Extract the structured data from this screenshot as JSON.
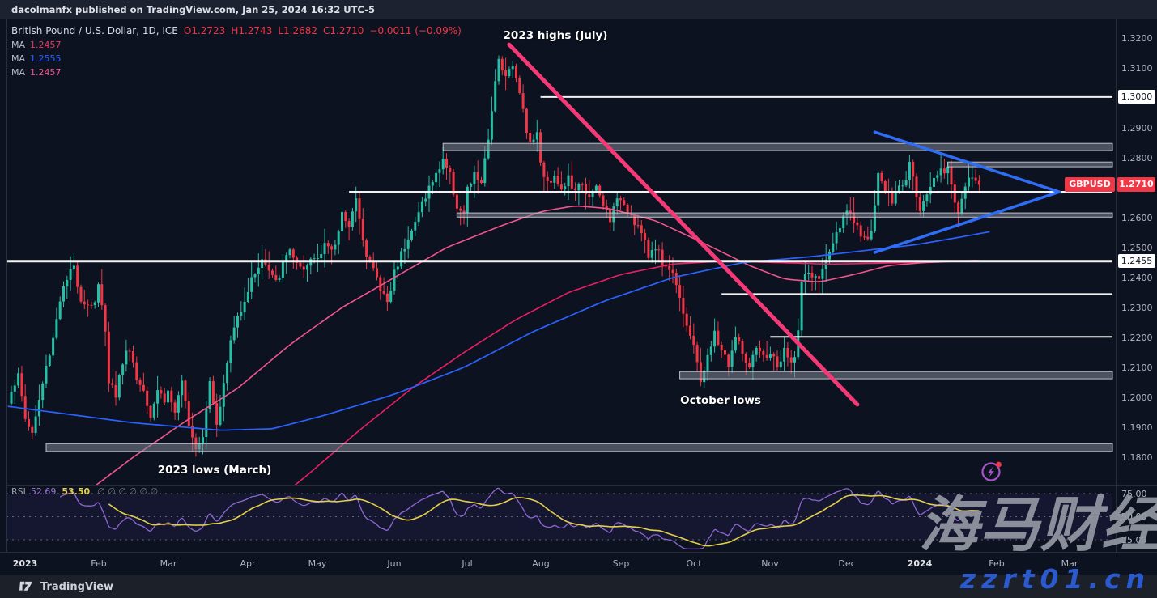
{
  "topbar": {
    "text": "dacolmanfx published on TradingView.com, Jan 25, 2024 16:32 UTC-5"
  },
  "legend": {
    "symbol": "British Pound / U.S. Dollar, 1D, ICE",
    "ohlc": {
      "open": "O1.2723",
      "high": "H1.2743",
      "low": "L1.2682",
      "close": "C1.2710",
      "change": "−0.0011 (−0.09%)"
    },
    "ma_rows": [
      {
        "label": "MA",
        "value": "1.2457",
        "color": "#e93a5f"
      },
      {
        "label": "MA",
        "value": "1.2555",
        "color": "#2962ff"
      },
      {
        "label": "MA",
        "value": "1.2457",
        "color": "#f0558c"
      }
    ]
  },
  "annotations": [
    {
      "text": "2023 highs (July)"
    },
    {
      "text": "October lows"
    },
    {
      "text": "2023 lows (March)"
    }
  ],
  "price_axis": {
    "ticks": [
      {
        "label": "1.3200",
        "price": 1.32
      },
      {
        "label": "1.3100",
        "price": 1.31
      },
      {
        "label": "1.2900",
        "price": 1.29
      },
      {
        "label": "1.2800",
        "price": 1.28
      },
      {
        "label": "1.2600",
        "price": 1.26
      },
      {
        "label": "1.2500",
        "price": 1.25
      },
      {
        "label": "1.2400",
        "price": 1.24
      },
      {
        "label": "1.2300",
        "price": 1.23
      },
      {
        "label": "1.2200",
        "price": 1.22
      },
      {
        "label": "1.2100",
        "price": 1.21
      },
      {
        "label": "1.2000",
        "price": 1.2
      },
      {
        "label": "1.1900",
        "price": 1.19
      },
      {
        "label": "1.1800",
        "price": 1.18
      }
    ],
    "boxed_labels": [
      {
        "label": "1.3000",
        "price": 1.3003
      },
      {
        "label": "1.2455",
        "price": 1.2455
      }
    ],
    "symbol_tag": {
      "symbol": "GBPUSD",
      "price_label": "1.2710",
      "price": 1.271,
      "color": "#f23645"
    }
  },
  "time_axis": [
    {
      "label": "2023",
      "day": 4,
      "year": true
    },
    {
      "label": "Feb",
      "day": 25
    },
    {
      "label": "Mar",
      "day": 45
    },
    {
      "label": "Apr",
      "day": 68
    },
    {
      "label": "May",
      "day": 88
    },
    {
      "label": "Jun",
      "day": 110
    },
    {
      "label": "Jul",
      "day": 131
    },
    {
      "label": "Aug",
      "day": 152
    },
    {
      "label": "Sep",
      "day": 175
    },
    {
      "label": "Oct",
      "day": 196
    },
    {
      "label": "Nov",
      "day": 218
    },
    {
      "label": "Dec",
      "day": 240
    },
    {
      "label": "2024",
      "day": 261,
      "year": true
    },
    {
      "label": "Feb",
      "day": 283
    },
    {
      "label": "Mar",
      "day": 304
    }
  ],
  "rsi_pane": {
    "label": "RSI",
    "value": "52.69",
    "ma_value": "53.50",
    "empty_markers": [
      "∅",
      "∅",
      "∅",
      "∅",
      "∅",
      "∅"
    ],
    "scale": [
      {
        "label": "75.00",
        "value": 75
      },
      {
        "label": "50.00",
        "value": 50
      },
      {
        "label": "25.00",
        "value": 25
      }
    ]
  },
  "footer": {
    "brand": "TradingView"
  },
  "watermark": {
    "cn": "海马财经",
    "url": "zzrt01.cn"
  },
  "chart_data": {
    "type": "candlestick",
    "symbol": "GBPUSD",
    "description": "British Pound / U.S. Dollar",
    "timeframe": "1D",
    "exchange": "ICE",
    "current_bar": {
      "open": 1.2723,
      "high": 1.2743,
      "low": 1.2682,
      "close": 1.271,
      "change": -0.0011,
      "change_pct": -0.09
    },
    "moving_averages": [
      {
        "value": 1.2457,
        "color": "#e93a5f"
      },
      {
        "value": 1.2555,
        "color": "#2962ff"
      },
      {
        "value": 1.2457,
        "color": "#f0558c"
      }
    ],
    "y_axis": {
      "min": 1.1745,
      "max": 1.3235,
      "tick_step": 0.01
    },
    "num_days": 279,
    "up_color": "#26bfa6",
    "down_color": "#f23645",
    "close_anchors": [
      [
        0,
        1.203
      ],
      [
        2,
        1.207
      ],
      [
        4,
        1.193
      ],
      [
        6,
        1.188
      ],
      [
        8,
        1.199
      ],
      [
        10,
        1.21
      ],
      [
        12,
        1.22
      ],
      [
        14,
        1.233
      ],
      [
        16,
        1.239
      ],
      [
        18,
        1.2435
      ],
      [
        20,
        1.233
      ],
      [
        22,
        1.231
      ],
      [
        24,
        1.232
      ],
      [
        25,
        1.237
      ],
      [
        26,
        1.23
      ],
      [
        27,
        1.223
      ],
      [
        28,
        1.206
      ],
      [
        30,
        1.201
      ],
      [
        32,
        1.212
      ],
      [
        34,
        1.217
      ],
      [
        36,
        1.206
      ],
      [
        38,
        1.203
      ],
      [
        40,
        1.1945
      ],
      [
        42,
        1.203
      ],
      [
        44,
        1.199
      ],
      [
        45,
        1.202
      ],
      [
        47,
        1.195
      ],
      [
        49,
        1.204
      ],
      [
        51,
        1.192
      ],
      [
        53,
        1.1835
      ],
      [
        55,
        1.188
      ],
      [
        57,
        1.206
      ],
      [
        59,
        1.192
      ],
      [
        61,
        1.204
      ],
      [
        63,
        1.219
      ],
      [
        65,
        1.227
      ],
      [
        67,
        1.233
      ],
      [
        70,
        1.242
      ],
      [
        72,
        1.246
      ],
      [
        74,
        1.242
      ],
      [
        76,
        1.238
      ],
      [
        78,
        1.244
      ],
      [
        80,
        1.25
      ],
      [
        82,
        1.244
      ],
      [
        84,
        1.241
      ],
      [
        86,
        1.246
      ],
      [
        88,
        1.247
      ],
      [
        90,
        1.252
      ],
      [
        92,
        1.248
      ],
      [
        94,
        1.255
      ],
      [
        95,
        1.263
      ],
      [
        97,
        1.257
      ],
      [
        99,
        1.265
      ],
      [
        100,
        1.261
      ],
      [
        102,
        1.247
      ],
      [
        104,
        1.243
      ],
      [
        106,
        1.236
      ],
      [
        108,
        1.232
      ],
      [
        109,
        1.236
      ],
      [
        110,
        1.242
      ],
      [
        112,
        1.248
      ],
      [
        114,
        1.254
      ],
      [
        116,
        1.258
      ],
      [
        118,
        1.265
      ],
      [
        120,
        1.27
      ],
      [
        122,
        1.274
      ],
      [
        124,
        1.28
      ],
      [
        126,
        1.274
      ],
      [
        128,
        1.264
      ],
      [
        130,
        1.261
      ],
      [
        131,
        1.269
      ],
      [
        133,
        1.274
      ],
      [
        135,
        1.272
      ],
      [
        137,
        1.285
      ],
      [
        139,
        1.307
      ],
      [
        140,
        1.313
      ],
      [
        142,
        1.308
      ],
      [
        144,
        1.31
      ],
      [
        146,
        1.303
      ],
      [
        148,
        1.289
      ],
      [
        150,
        1.285
      ],
      [
        151,
        1.29
      ],
      [
        152,
        1.2775
      ],
      [
        154,
        1.271
      ],
      [
        156,
        1.275
      ],
      [
        158,
        1.269
      ],
      [
        160,
        1.273
      ],
      [
        162,
        1.268
      ],
      [
        164,
        1.272
      ],
      [
        166,
        1.266
      ],
      [
        168,
        1.27
      ],
      [
        170,
        1.264
      ],
      [
        172,
        1.26
      ],
      [
        174,
        1.265
      ],
      [
        175,
        1.267
      ],
      [
        177,
        1.263
      ],
      [
        179,
        1.259
      ],
      [
        181,
        1.255
      ],
      [
        183,
        1.247
      ],
      [
        185,
        1.251
      ],
      [
        187,
        1.245
      ],
      [
        189,
        1.243
      ],
      [
        191,
        1.239
      ],
      [
        193,
        1.229
      ],
      [
        195,
        1.22
      ],
      [
        197,
        1.212
      ],
      [
        198,
        1.206
      ],
      [
        200,
        1.213
      ],
      [
        202,
        1.221
      ],
      [
        204,
        1.216
      ],
      [
        206,
        1.211
      ],
      [
        208,
        1.22
      ],
      [
        210,
        1.215
      ],
      [
        212,
        1.209
      ],
      [
        214,
        1.216
      ],
      [
        216,
        1.213
      ],
      [
        218,
        1.215
      ],
      [
        220,
        1.21
      ],
      [
        222,
        1.215
      ],
      [
        224,
        1.211
      ],
      [
        225,
        1.215
      ],
      [
        226,
        1.222
      ],
      [
        227,
        1.238
      ],
      [
        229,
        1.242
      ],
      [
        231,
        1.239
      ],
      [
        233,
        1.242
      ],
      [
        235,
        1.249
      ],
      [
        237,
        1.254
      ],
      [
        239,
        1.262
      ],
      [
        241,
        1.26
      ],
      [
        243,
        1.256
      ],
      [
        245,
        1.252
      ],
      [
        247,
        1.256
      ],
      [
        249,
        1.275
      ],
      [
        251,
        1.269
      ],
      [
        253,
        1.265
      ],
      [
        255,
        1.27
      ],
      [
        257,
        1.273
      ],
      [
        258,
        1.28
      ],
      [
        259,
        1.275
      ],
      [
        261,
        1.262
      ],
      [
        263,
        1.268
      ],
      [
        265,
        1.274
      ],
      [
        267,
        1.276
      ],
      [
        269,
        1.276
      ],
      [
        271,
        1.265
      ],
      [
        272,
        1.263
      ],
      [
        274,
        1.27
      ],
      [
        276,
        1.274
      ],
      [
        277,
        1.2723
      ],
      [
        278,
        1.271
      ]
    ],
    "extremes": {
      "july_high": 1.3142,
      "july_high_day": 140,
      "march_low": 1.1802,
      "march_low_day": 53,
      "october_low": 1.2037,
      "october_low_day": 198
    },
    "ma_blue_path": [
      [
        -1,
        1.197
      ],
      [
        35,
        1.1915
      ],
      [
        60,
        1.189
      ],
      [
        75,
        1.1895
      ],
      [
        90,
        1.194
      ],
      [
        110,
        1.201
      ],
      [
        130,
        1.21
      ],
      [
        150,
        1.222
      ],
      [
        170,
        1.232
      ],
      [
        190,
        1.24
      ],
      [
        210,
        1.245
      ],
      [
        230,
        1.247
      ],
      [
        245,
        1.249
      ],
      [
        260,
        1.251
      ],
      [
        270,
        1.253
      ],
      [
        282,
        1.2555
      ]
    ],
    "ma_pink_fast_path": [
      [
        19,
        1.166
      ],
      [
        35,
        1.18
      ],
      [
        50,
        1.192
      ],
      [
        65,
        1.203
      ],
      [
        80,
        1.2176
      ],
      [
        95,
        1.23
      ],
      [
        110,
        1.24
      ],
      [
        125,
        1.25
      ],
      [
        140,
        1.257
      ],
      [
        152,
        1.262
      ],
      [
        162,
        1.264
      ],
      [
        172,
        1.263
      ],
      [
        185,
        1.259
      ],
      [
        198,
        1.252
      ],
      [
        212,
        1.244
      ],
      [
        222,
        1.2395
      ],
      [
        232,
        1.2385
      ],
      [
        242,
        1.241
      ],
      [
        252,
        1.244
      ],
      [
        262,
        1.245
      ],
      [
        278,
        1.2457
      ]
    ],
    "ma_pink_slow_path": [
      [
        70,
        1.16
      ],
      [
        85,
        1.174
      ],
      [
        100,
        1.189
      ],
      [
        115,
        1.203
      ],
      [
        130,
        1.215
      ],
      [
        145,
        1.226
      ],
      [
        160,
        1.235
      ],
      [
        175,
        1.241
      ],
      [
        190,
        1.2445
      ],
      [
        205,
        1.2455
      ],
      [
        220,
        1.245
      ],
      [
        235,
        1.2445
      ],
      [
        250,
        1.2448
      ],
      [
        265,
        1.2452
      ],
      [
        278,
        1.2457
      ]
    ],
    "levels": [
      {
        "type": "line",
        "price": 1.3003,
        "from_day": 152,
        "width": 2
      },
      {
        "type": "band",
        "price_top": 1.2848,
        "price_bottom": 1.2824,
        "from_day": 124
      },
      {
        "type": "band",
        "price_top": 1.2786,
        "price_bottom": 1.277,
        "from_day": 269
      },
      {
        "type": "line",
        "price": 1.2686,
        "from_day": 97,
        "width": 2.4
      },
      {
        "type": "band",
        "price_top": 1.2616,
        "price_bottom": 1.2602,
        "from_day": 128
      },
      {
        "type": "line",
        "price": 1.2455,
        "from_day": -2,
        "width": 3
      },
      {
        "type": "line",
        "price": 1.2345,
        "from_day": 204,
        "width": 2
      },
      {
        "type": "line",
        "price": 1.2202,
        "from_day": 218,
        "width": 2
      },
      {
        "type": "band",
        "price_top": 1.2086,
        "price_bottom": 1.2062,
        "from_day": 192
      },
      {
        "type": "band",
        "price_top": 1.1845,
        "price_bottom": 1.1819,
        "from_day": 10
      }
    ],
    "trendlines": [
      {
        "name": "downtrend-from-2023-highs",
        "color": "#f43a76",
        "width": 5,
        "from": [
          143,
          1.3178
        ],
        "to": [
          243,
          1.1976
        ]
      },
      {
        "name": "triangle-upper",
        "color": "#2f6df6",
        "width": 3.5,
        "from": [
          248,
          1.2886
        ],
        "to": [
          301,
          1.2686
        ]
      },
      {
        "name": "triangle-lower",
        "color": "#2f6df6",
        "width": 3.5,
        "from": [
          248,
          1.2484
        ],
        "to": [
          301,
          1.2686
        ]
      }
    ],
    "rsi": {
      "period": 14,
      "value": 52.69,
      "ma_value": 53.5,
      "scale_lines": [
        75,
        50,
        25
      ],
      "line_color": "#8e67d3",
      "ma_color": "#e3cf4a"
    }
  }
}
